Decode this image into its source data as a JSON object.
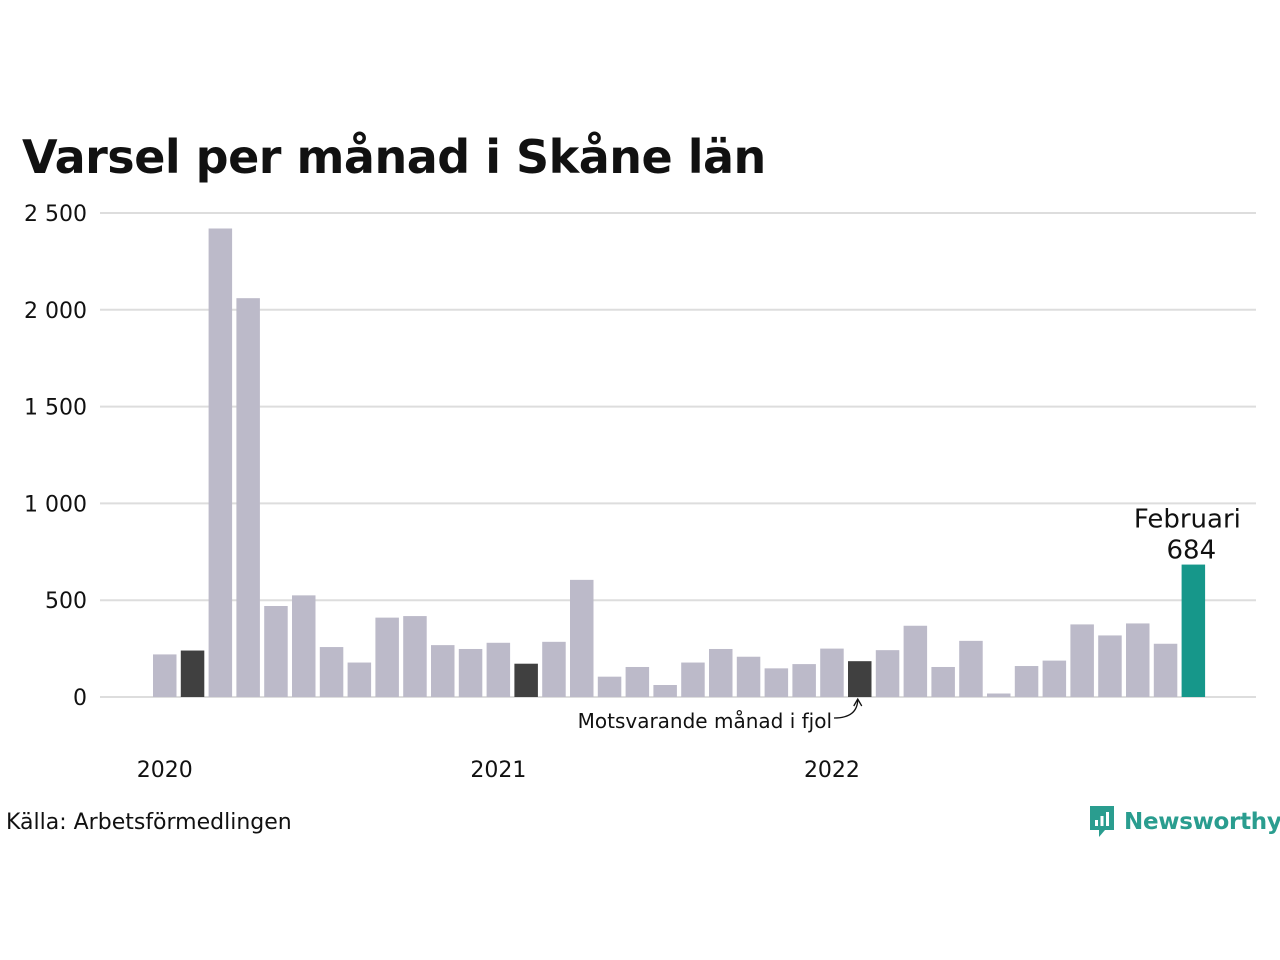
{
  "title": "Varsel per månad i Skåne län",
  "source": "Källa: Arbetsförmedlingen",
  "brand": "Newsworthy",
  "colors": {
    "bar": "#bcbac9",
    "comparison": "#404040",
    "highlight": "#16978a",
    "grid": "#dddddd",
    "brand": "#2a9d8f"
  },
  "annotation": "Motsvarande månad i fjol",
  "chart_data": {
    "type": "bar",
    "title": "Varsel per månad i Skåne län",
    "ylim": [
      0,
      2500
    ],
    "yticks": [
      0,
      500,
      1000,
      1500,
      2000,
      2500
    ],
    "ytick_labels": [
      "0",
      "500",
      "1 000",
      "1 500",
      "2 000",
      "2 500"
    ],
    "year_labels": [
      {
        "label": "2020",
        "index": 0
      },
      {
        "label": "2021",
        "index": 12
      },
      {
        "label": "2022",
        "index": 24
      }
    ],
    "grid": true,
    "values": [
      220,
      240,
      2420,
      2060,
      470,
      525,
      258,
      178,
      410,
      418,
      268,
      248,
      280,
      172,
      285,
      605,
      105,
      155,
      62,
      178,
      248,
      208,
      148,
      170,
      250,
      185,
      242,
      368,
      155,
      290,
      18,
      160,
      188,
      375,
      318,
      380,
      275,
      684
    ],
    "comparison_indices": [
      1,
      13,
      25
    ],
    "highlight_index": 37,
    "highlight_label": "Februari",
    "highlight_value_label": "684"
  }
}
